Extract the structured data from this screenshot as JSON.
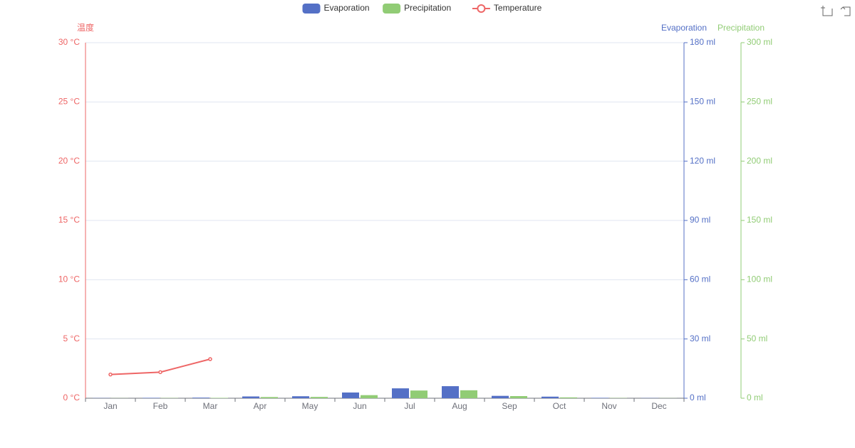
{
  "chart_data": {
    "type": "bar",
    "categories": [
      "Jan",
      "Feb",
      "Mar",
      "Apr",
      "May",
      "Jun",
      "Jul",
      "Aug",
      "Sep",
      "Oct",
      "Nov",
      "Dec"
    ],
    "series": [
      {
        "name": "Evaporation",
        "type": "bar",
        "axis": "y2",
        "color": "#5470c6",
        "values": [
          0.1,
          0.2,
          0.3,
          0.9,
          1.0,
          2.9,
          5.0,
          6.1,
          1.2,
          0.8,
          0.2,
          0.1
        ]
      },
      {
        "name": "Precipitation",
        "type": "bar",
        "axis": "y3",
        "color": "#91cc75",
        "values": [
          0.1,
          0.2,
          0.3,
          1.0,
          1.1,
          2.6,
          6.5,
          6.7,
          1.8,
          0.7,
          0.2,
          0.1
        ]
      },
      {
        "name": "Temperature",
        "type": "line",
        "axis": "y",
        "color": "#ee6666",
        "values": [
          2.0,
          2.2,
          3.3,
          null,
          null,
          null,
          null,
          null,
          null,
          null,
          null,
          null
        ]
      }
    ],
    "ylabel": "温度",
    "ylim": [
      0,
      30
    ],
    "yticks": [
      {
        "value": 0,
        "label": "0 °C"
      },
      {
        "value": 5,
        "label": "5 °C"
      },
      {
        "value": 10,
        "label": "10 °C"
      },
      {
        "value": 15,
        "label": "15 °C"
      },
      {
        "value": 20,
        "label": "20 °C"
      },
      {
        "value": 25,
        "label": "25 °C"
      },
      {
        "value": 30,
        "label": "30 °C"
      }
    ],
    "y2label": "Evaporation",
    "y2lim": [
      0,
      180
    ],
    "y2ticks": [
      {
        "value": 0,
        "label": "0 ml"
      },
      {
        "value": 30,
        "label": "30 ml"
      },
      {
        "value": 60,
        "label": "60 ml"
      },
      {
        "value": 90,
        "label": "90 ml"
      },
      {
        "value": 120,
        "label": "120 ml"
      },
      {
        "value": 150,
        "label": "150 ml"
      },
      {
        "value": 180,
        "label": "180 ml"
      }
    ],
    "y3label": "Precipitation",
    "y3lim": [
      0,
      300
    ],
    "y3ticks": [
      {
        "value": 0,
        "label": "0 ml"
      },
      {
        "value": 50,
        "label": "50 ml"
      },
      {
        "value": 100,
        "label": "100 ml"
      },
      {
        "value": 150,
        "label": "150 ml"
      },
      {
        "value": 200,
        "label": "200 ml"
      },
      {
        "value": 250,
        "label": "250 ml"
      },
      {
        "value": 300,
        "label": "300 ml"
      }
    ],
    "grid": true,
    "legend": "top"
  }
}
